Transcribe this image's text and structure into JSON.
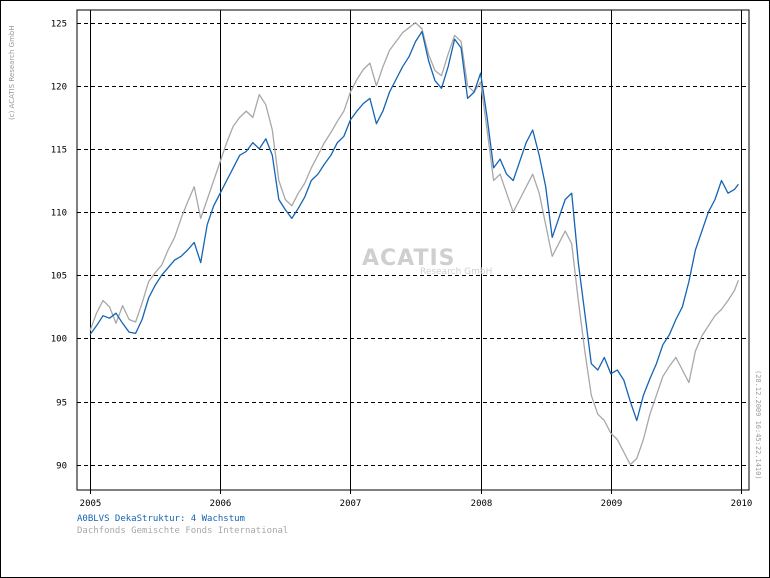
{
  "chart_data": {
    "type": "line",
    "ylim": [
      88,
      126
    ],
    "xlim": [
      2005.0,
      2010.0
    ],
    "y_ticks": [
      90,
      95,
      100,
      105,
      110,
      115,
      120,
      125
    ],
    "x_ticks": [
      "2005",
      "2006",
      "2007",
      "2008",
      "2009",
      "2010"
    ],
    "grid": true,
    "series": [
      {
        "name": "A0BLVS DekaStruktur: 4 Wachstum",
        "color": "#1464b4",
        "points": [
          [
            2005.0,
            100.3
          ],
          [
            2005.05,
            101
          ],
          [
            2005.1,
            101.8
          ],
          [
            2005.15,
            101.6
          ],
          [
            2005.2,
            102
          ],
          [
            2005.25,
            101.2
          ],
          [
            2005.3,
            100.5
          ],
          [
            2005.35,
            100.4
          ],
          [
            2005.4,
            101.5
          ],
          [
            2005.45,
            103.2
          ],
          [
            2005.5,
            104.2
          ],
          [
            2005.55,
            105
          ],
          [
            2005.6,
            105.6
          ],
          [
            2005.65,
            106.2
          ],
          [
            2005.7,
            106.5
          ],
          [
            2005.75,
            107
          ],
          [
            2005.8,
            107.6
          ],
          [
            2005.85,
            106
          ],
          [
            2005.9,
            109
          ],
          [
            2005.95,
            110.5
          ],
          [
            2006.0,
            111.5
          ],
          [
            2006.05,
            112.5
          ],
          [
            2006.1,
            113.5
          ],
          [
            2006.15,
            114.5
          ],
          [
            2006.2,
            114.8
          ],
          [
            2006.25,
            115.5
          ],
          [
            2006.3,
            115
          ],
          [
            2006.35,
            115.8
          ],
          [
            2006.4,
            114.5
          ],
          [
            2006.45,
            111
          ],
          [
            2006.5,
            110.2
          ],
          [
            2006.55,
            109.5
          ],
          [
            2006.6,
            110.3
          ],
          [
            2006.65,
            111.2
          ],
          [
            2006.7,
            112.5
          ],
          [
            2006.75,
            113
          ],
          [
            2006.8,
            113.8
          ],
          [
            2006.85,
            114.5
          ],
          [
            2006.9,
            115.5
          ],
          [
            2006.95,
            116
          ],
          [
            2007.0,
            117.3
          ],
          [
            2007.05,
            118
          ],
          [
            2007.1,
            118.6
          ],
          [
            2007.15,
            119
          ],
          [
            2007.2,
            117
          ],
          [
            2007.25,
            118
          ],
          [
            2007.3,
            119.5
          ],
          [
            2007.35,
            120.5
          ],
          [
            2007.4,
            121.5
          ],
          [
            2007.45,
            122.3
          ],
          [
            2007.5,
            123.5
          ],
          [
            2007.55,
            124.3
          ],
          [
            2007.6,
            122
          ],
          [
            2007.65,
            120.4
          ],
          [
            2007.7,
            119.8
          ],
          [
            2007.75,
            121.5
          ],
          [
            2007.8,
            123.7
          ],
          [
            2007.85,
            123
          ],
          [
            2007.9,
            119
          ],
          [
            2007.95,
            119.5
          ],
          [
            2008.0,
            121
          ],
          [
            2008.05,
            117.5
          ],
          [
            2008.1,
            113.5
          ],
          [
            2008.15,
            114.2
          ],
          [
            2008.2,
            113
          ],
          [
            2008.25,
            112.5
          ],
          [
            2008.3,
            114
          ],
          [
            2008.35,
            115.5
          ],
          [
            2008.4,
            116.5
          ],
          [
            2008.45,
            114.5
          ],
          [
            2008.5,
            112
          ],
          [
            2008.55,
            108
          ],
          [
            2008.6,
            109.5
          ],
          [
            2008.65,
            111
          ],
          [
            2008.7,
            111.5
          ],
          [
            2008.75,
            106
          ],
          [
            2008.8,
            102
          ],
          [
            2008.85,
            98
          ],
          [
            2008.9,
            97.5
          ],
          [
            2008.95,
            98.5
          ],
          [
            2009.0,
            97.2
          ],
          [
            2009.05,
            97.5
          ],
          [
            2009.1,
            96.7
          ],
          [
            2009.15,
            95
          ],
          [
            2009.2,
            93.5
          ],
          [
            2009.25,
            95.5
          ],
          [
            2009.3,
            96.8
          ],
          [
            2009.35,
            98
          ],
          [
            2009.4,
            99.5
          ],
          [
            2009.45,
            100.3
          ],
          [
            2009.5,
            101.5
          ],
          [
            2009.55,
            102.5
          ],
          [
            2009.6,
            104.5
          ],
          [
            2009.65,
            107
          ],
          [
            2009.7,
            108.5
          ],
          [
            2009.75,
            110
          ],
          [
            2009.8,
            111
          ],
          [
            2009.85,
            112.5
          ],
          [
            2009.9,
            111.5
          ],
          [
            2009.95,
            111.8
          ],
          [
            2009.98,
            112.2
          ]
        ]
      },
      {
        "name": "Dachfonds Gemischte Fonds International",
        "color": "#a8a8a8",
        "points": [
          [
            2005.0,
            100.6
          ],
          [
            2005.05,
            102
          ],
          [
            2005.1,
            103
          ],
          [
            2005.15,
            102.5
          ],
          [
            2005.2,
            101.2
          ],
          [
            2005.25,
            102.6
          ],
          [
            2005.3,
            101.5
          ],
          [
            2005.35,
            101.3
          ],
          [
            2005.4,
            102.8
          ],
          [
            2005.45,
            104.5
          ],
          [
            2005.5,
            105.2
          ],
          [
            2005.55,
            105.8
          ],
          [
            2005.6,
            107
          ],
          [
            2005.65,
            108
          ],
          [
            2005.7,
            109.5
          ],
          [
            2005.75,
            110.8
          ],
          [
            2005.8,
            112
          ],
          [
            2005.85,
            109.5
          ],
          [
            2005.9,
            111
          ],
          [
            2005.95,
            112.5
          ],
          [
            2006.0,
            114
          ],
          [
            2006.05,
            115.5
          ],
          [
            2006.1,
            116.8
          ],
          [
            2006.15,
            117.5
          ],
          [
            2006.2,
            118
          ],
          [
            2006.25,
            117.5
          ],
          [
            2006.3,
            119.3
          ],
          [
            2006.35,
            118.5
          ],
          [
            2006.4,
            116.5
          ],
          [
            2006.45,
            112.5
          ],
          [
            2006.5,
            111
          ],
          [
            2006.55,
            110.5
          ],
          [
            2006.6,
            111.5
          ],
          [
            2006.65,
            112.3
          ],
          [
            2006.7,
            113.5
          ],
          [
            2006.75,
            114.5
          ],
          [
            2006.8,
            115.5
          ],
          [
            2006.85,
            116.3
          ],
          [
            2006.9,
            117.2
          ],
          [
            2006.95,
            118
          ],
          [
            2007.0,
            119.5
          ],
          [
            2007.05,
            120.5
          ],
          [
            2007.1,
            121.3
          ],
          [
            2007.15,
            121.8
          ],
          [
            2007.2,
            120
          ],
          [
            2007.25,
            121.5
          ],
          [
            2007.3,
            122.8
          ],
          [
            2007.35,
            123.5
          ],
          [
            2007.4,
            124.2
          ],
          [
            2007.45,
            124.6
          ],
          [
            2007.5,
            125
          ],
          [
            2007.55,
            124.5
          ],
          [
            2007.6,
            122.5
          ],
          [
            2007.65,
            121.2
          ],
          [
            2007.7,
            120.8
          ],
          [
            2007.75,
            122.5
          ],
          [
            2007.8,
            124
          ],
          [
            2007.85,
            123.5
          ],
          [
            2007.9,
            120
          ],
          [
            2007.95,
            119.5
          ],
          [
            2008.0,
            120.3
          ],
          [
            2008.05,
            116.5
          ],
          [
            2008.1,
            112.5
          ],
          [
            2008.15,
            113
          ],
          [
            2008.2,
            111.5
          ],
          [
            2008.25,
            110
          ],
          [
            2008.3,
            111
          ],
          [
            2008.35,
            112
          ],
          [
            2008.4,
            113
          ],
          [
            2008.45,
            111.5
          ],
          [
            2008.5,
            109
          ],
          [
            2008.55,
            106.5
          ],
          [
            2008.6,
            107.5
          ],
          [
            2008.65,
            108.5
          ],
          [
            2008.7,
            107.5
          ],
          [
            2008.75,
            103
          ],
          [
            2008.8,
            99
          ],
          [
            2008.85,
            95.5
          ],
          [
            2008.9,
            94
          ],
          [
            2008.95,
            93.5
          ],
          [
            2009.0,
            92.5
          ],
          [
            2009.05,
            92
          ],
          [
            2009.1,
            91
          ],
          [
            2009.15,
            90
          ],
          [
            2009.2,
            90.5
          ],
          [
            2009.25,
            92
          ],
          [
            2009.3,
            94
          ],
          [
            2009.35,
            95.5
          ],
          [
            2009.4,
            97
          ],
          [
            2009.45,
            97.8
          ],
          [
            2009.5,
            98.5
          ],
          [
            2009.55,
            97.5
          ],
          [
            2009.6,
            96.5
          ],
          [
            2009.65,
            99
          ],
          [
            2009.7,
            100.2
          ],
          [
            2009.75,
            101
          ],
          [
            2009.8,
            101.8
          ],
          [
            2009.85,
            102.3
          ],
          [
            2009.9,
            103
          ],
          [
            2009.95,
            103.8
          ],
          [
            2009.98,
            104.6
          ]
        ]
      }
    ]
  },
  "copyright_text": "(c) ACATIS Research GmbH",
  "timestamp_text": "(28.12.2009 16:45:22.1410)",
  "watermark": {
    "main": "ACATIS",
    "sub": "Research GmbH"
  }
}
